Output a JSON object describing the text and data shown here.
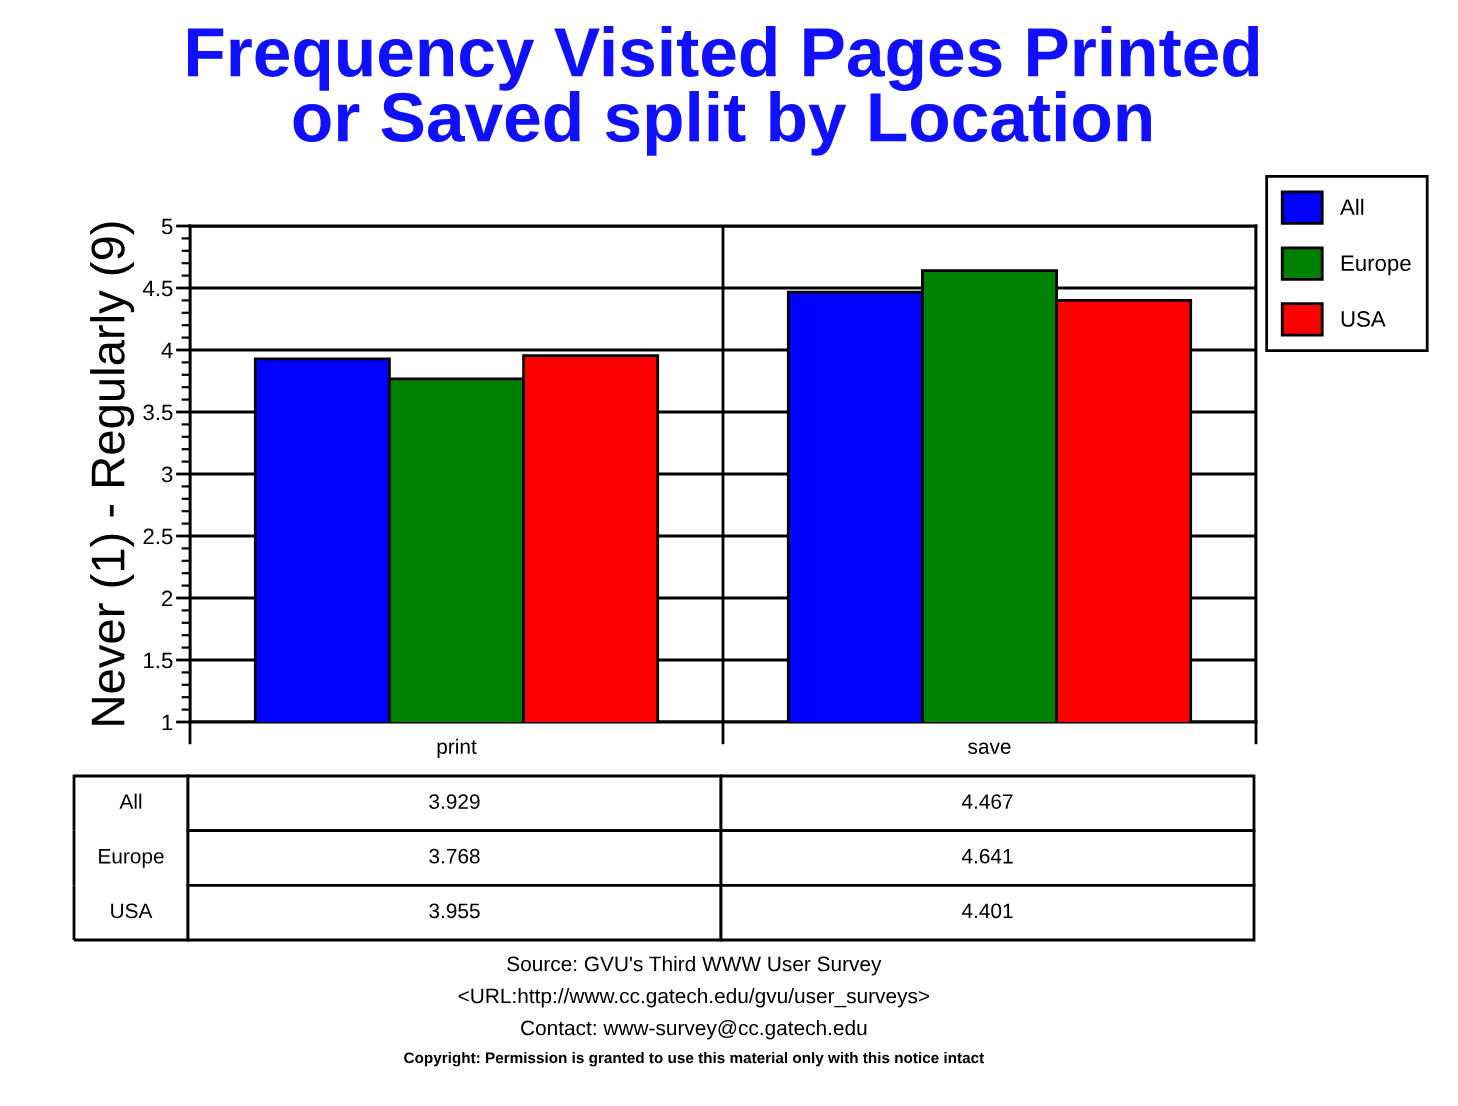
{
  "chart_data": {
    "type": "bar",
    "title": "Frequency Visited Pages Printed\nor Saved split by Location",
    "ylabel": "Never (1) - Regularly (9)",
    "categories": [
      "print",
      "save"
    ],
    "series": [
      {
        "name": "All",
        "color": "#0000ff",
        "values": [
          3.929,
          4.467
        ]
      },
      {
        "name": "Europe",
        "color": "#008000",
        "values": [
          3.768,
          4.641
        ]
      },
      {
        "name": "USA",
        "color": "#ff0000",
        "values": [
          3.955,
          4.401
        ]
      }
    ],
    "ylim": [
      1,
      5
    ],
    "yticks": [
      1,
      1.5,
      2,
      2.5,
      3,
      3.5,
      4,
      4.5,
      5
    ],
    "grid": true,
    "legend": "top right",
    "data_labels": true,
    "annotations": [
      "Source: GVU's Third WWW User Survey",
      "<URL:http://www.cc.gatech.edu/gvu/user_surveys>",
      "Contact: www-survey@cc.gatech.edu",
      "Copyright: Permission is granted to use this material only with this notice intact"
    ]
  }
}
